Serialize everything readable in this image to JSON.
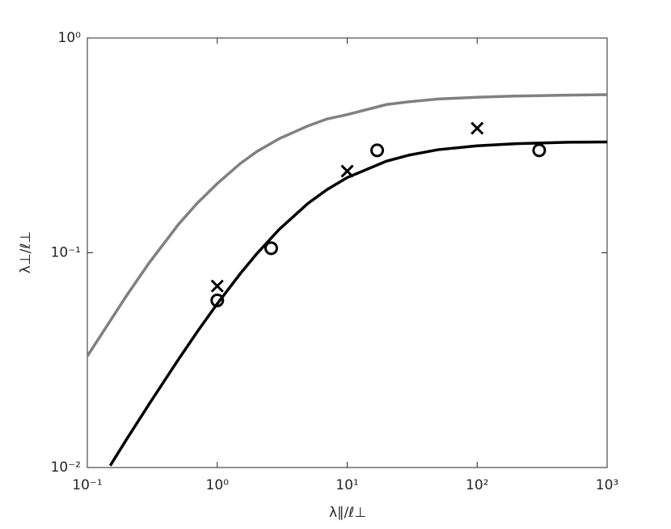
{
  "chart_data": {
    "type": "line",
    "xlabel": "λ∥/ℓ⊥",
    "ylabel": "λ⊥/ℓ⊥",
    "xscale": "log",
    "yscale": "log",
    "xlim": [
      0.1,
      1000
    ],
    "ylim": [
      0.01,
      1
    ],
    "xticks": [
      {
        "value": 0.1,
        "label": "10⁻¹"
      },
      {
        "value": 1,
        "label": "10⁰"
      },
      {
        "value": 10,
        "label": "10¹"
      },
      {
        "value": 100,
        "label": "10²"
      },
      {
        "value": 1000,
        "label": "10³"
      }
    ],
    "yticks": [
      {
        "value": 0.01,
        "label": "10⁻²"
      },
      {
        "value": 0.1,
        "label": "10⁻¹"
      },
      {
        "value": 1,
        "label": "10⁰"
      }
    ],
    "series": [
      {
        "color": "#808080",
        "marker": "none",
        "x": [
          0.1,
          0.2,
          0.3,
          0.5,
          0.7,
          1,
          1.5,
          2,
          3,
          5,
          7,
          10,
          20,
          30,
          50,
          100,
          200,
          500,
          1000
        ],
        "values": [
          0.033,
          0.063,
          0.09,
          0.135,
          0.17,
          0.21,
          0.26,
          0.295,
          0.34,
          0.39,
          0.42,
          0.44,
          0.49,
          0.505,
          0.52,
          0.53,
          0.537,
          0.542,
          0.545
        ]
      },
      {
        "color": "#000000",
        "marker": "none",
        "x": [
          0.15,
          0.2,
          0.3,
          0.5,
          0.7,
          1,
          1.5,
          2,
          3,
          5,
          7,
          10,
          20,
          30,
          50,
          100,
          200,
          500,
          1000
        ],
        "values": [
          0.0102,
          0.0135,
          0.0198,
          0.0317,
          0.0428,
          0.0579,
          0.0798,
          0.0985,
          0.1286,
          0.17,
          0.197,
          0.224,
          0.267,
          0.285,
          0.302,
          0.315,
          0.322,
          0.327,
          0.328
        ]
      },
      {
        "color": "#000000",
        "marker": "o",
        "x": [
          1,
          2.6,
          17,
          300
        ],
        "values": [
          0.06,
          0.105,
          0.3,
          0.3
        ]
      },
      {
        "color": "#000000",
        "marker": "x",
        "x": [
          1,
          10,
          100
        ],
        "values": [
          0.07,
          0.24,
          0.38
        ]
      }
    ]
  }
}
